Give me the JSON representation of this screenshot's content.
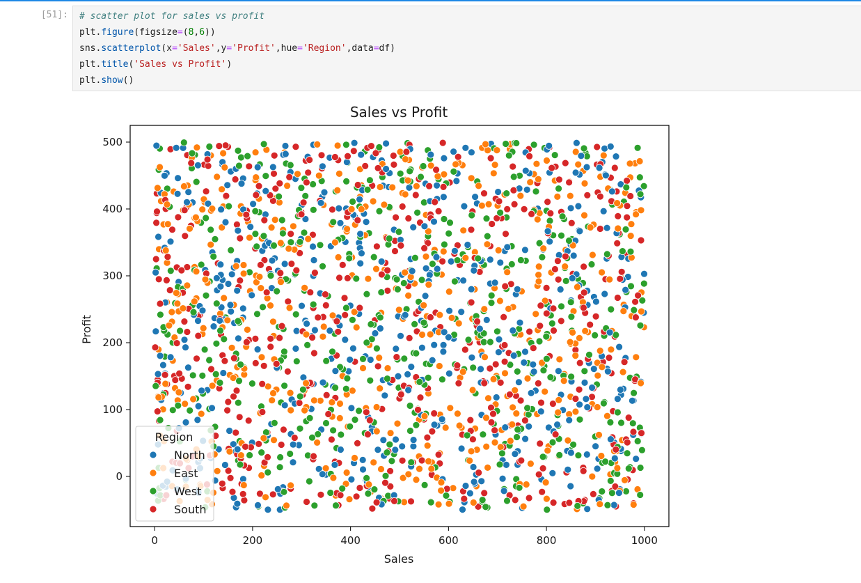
{
  "cell": {
    "prompt": "[51]:",
    "code_lines": [
      [
        {
          "t": "# scatter plot for sales vs profit",
          "c": "#3f7f7f",
          "i": true
        }
      ],
      [
        {
          "t": "plt.",
          "c": "#212121"
        },
        {
          "t": "figure",
          "c": "#0055aa"
        },
        {
          "t": "(figsize",
          "c": "#212121"
        },
        {
          "t": "=",
          "c": "#aa22ff"
        },
        {
          "t": "(",
          "c": "#212121"
        },
        {
          "t": "8",
          "c": "#008000"
        },
        {
          "t": ",",
          "c": "#212121"
        },
        {
          "t": "6",
          "c": "#008000"
        },
        {
          "t": "))",
          "c": "#212121"
        }
      ],
      [
        {
          "t": "sns.",
          "c": "#212121"
        },
        {
          "t": "scatterplot",
          "c": "#0055aa"
        },
        {
          "t": "(x",
          "c": "#212121"
        },
        {
          "t": "=",
          "c": "#aa22ff"
        },
        {
          "t": "'Sales'",
          "c": "#ba2121"
        },
        {
          "t": ",y",
          "c": "#212121"
        },
        {
          "t": "=",
          "c": "#aa22ff"
        },
        {
          "t": "'Profit'",
          "c": "#ba2121"
        },
        {
          "t": ",hue",
          "c": "#212121"
        },
        {
          "t": "=",
          "c": "#aa22ff"
        },
        {
          "t": "'Region'",
          "c": "#ba2121"
        },
        {
          "t": ",data",
          "c": "#212121"
        },
        {
          "t": "=",
          "c": "#aa22ff"
        },
        {
          "t": "df)",
          "c": "#212121"
        }
      ],
      [
        {
          "t": "plt.",
          "c": "#212121"
        },
        {
          "t": "title",
          "c": "#0055aa"
        },
        {
          "t": "(",
          "c": "#212121"
        },
        {
          "t": "'Sales vs Profit'",
          "c": "#ba2121"
        },
        {
          "t": ")",
          "c": "#212121"
        }
      ],
      [
        {
          "t": "plt.",
          "c": "#212121"
        },
        {
          "t": "show",
          "c": "#0055aa"
        },
        {
          "t": "()",
          "c": "#212121"
        }
      ]
    ]
  },
  "chart_data": {
    "type": "scatter",
    "title": "Sales vs Profit",
    "xlabel": "Sales",
    "ylabel": "Profit",
    "xlim": [
      -50,
      1050
    ],
    "ylim": [
      -75,
      525
    ],
    "xticks": [
      0,
      200,
      400,
      600,
      800,
      1000
    ],
    "yticks": [
      0,
      100,
      200,
      300,
      400,
      500
    ],
    "legend": {
      "title": "Region",
      "position": "lower-left",
      "entries": [
        "North",
        "East",
        "West",
        "South"
      ]
    },
    "series": [
      {
        "name": "North",
        "color": "#1f77b4",
        "generated": {
          "seed": 11,
          "count": 500,
          "x_range": [
            0,
            1000
          ],
          "y_range": [
            -50,
            500
          ]
        }
      },
      {
        "name": "East",
        "color": "#ff7f0e",
        "generated": {
          "seed": 23,
          "count": 500,
          "x_range": [
            0,
            1000
          ],
          "y_range": [
            -50,
            500
          ]
        }
      },
      {
        "name": "West",
        "color": "#2ca02c",
        "generated": {
          "seed": 37,
          "count": 500,
          "x_range": [
            0,
            1000
          ],
          "y_range": [
            -50,
            500
          ]
        }
      },
      {
        "name": "South",
        "color": "#d62728",
        "generated": {
          "seed": 53,
          "count": 500,
          "x_range": [
            0,
            1000
          ],
          "y_range": [
            -50,
            500
          ]
        }
      }
    ]
  }
}
